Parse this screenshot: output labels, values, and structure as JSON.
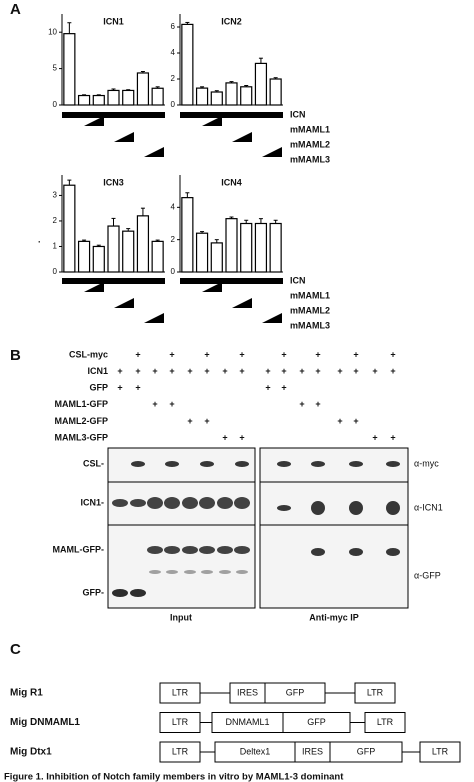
{
  "panels": {
    "a": "A",
    "b": "B",
    "c": "C"
  },
  "chart_data": [
    {
      "type": "bar",
      "title": "ICN1",
      "values": [
        9.8,
        1.3,
        1.3,
        2.0,
        2.0,
        4.4,
        2.3
      ],
      "errors": [
        1.5,
        0.1,
        0.1,
        0.2,
        0.1,
        0.2,
        0.2
      ],
      "ylim": [
        0,
        12.5
      ],
      "yticks": [
        0,
        5,
        10
      ]
    },
    {
      "type": "bar",
      "title": "ICN2",
      "values": [
        6.2,
        1.3,
        1.0,
        1.7,
        1.4,
        3.2,
        2.0
      ],
      "errors": [
        0.15,
        0.1,
        0.1,
        0.1,
        0.1,
        0.4,
        0.1
      ],
      "ylim": [
        0,
        7
      ],
      "yticks": [
        0,
        2,
        4,
        6
      ]
    },
    {
      "type": "bar",
      "title": "ICN3",
      "values": [
        3.4,
        1.2,
        1.0,
        1.8,
        1.6,
        2.2,
        1.2
      ],
      "errors": [
        0.2,
        0.05,
        0.05,
        0.3,
        0.1,
        0.3,
        0.05
      ],
      "ylim": [
        0,
        3.8
      ],
      "yticks": [
        0,
        1,
        2,
        3
      ]
    },
    {
      "type": "bar",
      "title": "ICN4",
      "values": [
        4.6,
        2.4,
        1.8,
        3.3,
        3.0,
        3.0,
        3.0
      ],
      "errors": [
        0.3,
        0.1,
        0.2,
        0.1,
        0.2,
        0.3,
        0.2
      ],
      "ylim": [
        0,
        6
      ],
      "yticks": [
        0,
        2,
        4
      ]
    }
  ],
  "conditions": [
    "ICN",
    "mMAML1",
    "mMAML2",
    "mMAML3"
  ],
  "dot": ".",
  "blot": {
    "rows": [
      {
        "label": "CSL-myc",
        "signs": [
          null,
          "+",
          null,
          "+",
          null,
          "+",
          null,
          "+",
          null,
          "+",
          null,
          "+",
          null,
          "+",
          null,
          "+"
        ]
      },
      {
        "label": "ICN1",
        "signs": [
          "+",
          "+",
          "+",
          "+",
          "+",
          "+",
          "+",
          "+",
          "+",
          "+",
          "+",
          "+",
          "+",
          "+",
          "+",
          "+"
        ]
      },
      {
        "label": "GFP",
        "signs": [
          "+",
          "+",
          null,
          null,
          null,
          null,
          null,
          null,
          "+",
          "+",
          null,
          null,
          null,
          null,
          null,
          null
        ]
      },
      {
        "label": "MAML1-GFP",
        "signs": [
          null,
          null,
          "+",
          "+",
          null,
          null,
          null,
          null,
          null,
          null,
          "+",
          "+",
          null,
          null,
          null,
          null
        ]
      },
      {
        "label": "MAML2-GFP",
        "signs": [
          null,
          null,
          null,
          null,
          "+",
          "+",
          null,
          null,
          null,
          null,
          null,
          null,
          "+",
          "+",
          null,
          null
        ]
      },
      {
        "label": "MAML3-GFP",
        "signs": [
          null,
          null,
          null,
          null,
          null,
          null,
          "+",
          "+",
          null,
          null,
          null,
          null,
          null,
          null,
          "+",
          "+"
        ]
      }
    ],
    "band_labels": [
      "CSL-",
      "ICN1-",
      "MAML-GFP-",
      "GFP-"
    ],
    "antibodies": [
      "α-myc",
      "α-ICN1",
      "α-GFP"
    ],
    "input": "Input",
    "ip": "Anti-myc IP"
  },
  "constructs": [
    {
      "name": "Mig R1",
      "parts": [
        "LTR",
        "IRES",
        "GFP",
        "LTR"
      ]
    },
    {
      "name": "Mig DNMAML1",
      "parts": [
        "LTR",
        "DNMAML1",
        "GFP",
        "LTR"
      ]
    },
    {
      "name": "Mig Dtx1",
      "parts": [
        "LTR",
        "Deltex1",
        "IRES",
        "GFP",
        "LTR"
      ]
    }
  ],
  "caption": "Figure 1. Inhibition of Notch family members in vitro by MAML1-3 dominant"
}
